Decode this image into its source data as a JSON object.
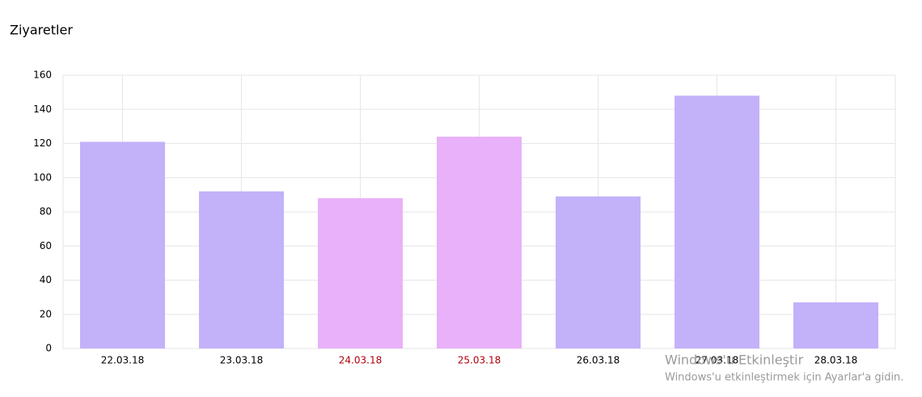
{
  "chart_data": {
    "type": "bar",
    "title": "Ziyaretler",
    "categories": [
      "22.03.18",
      "23.03.18",
      "24.03.18",
      "25.03.18",
      "26.03.18",
      "27.03.18",
      "28.03.18"
    ],
    "values": [
      121,
      92,
      88,
      124,
      89,
      148,
      27
    ],
    "colors": [
      "#c3b1f9",
      "#c3b1f9",
      "#e8b1f9",
      "#e8b1f9",
      "#c3b1f9",
      "#c3b1f9",
      "#c3b1f9"
    ],
    "label_colors": [
      "#000000",
      "#000000",
      "#b0000a",
      "#b0000a",
      "#000000",
      "#000000",
      "#000000"
    ],
    "ylim": [
      0,
      160
    ],
    "yticks": [
      0,
      20,
      40,
      60,
      80,
      100,
      120,
      140,
      160
    ],
    "grid": true
  },
  "watermark": {
    "title": "Windows'u Etkinleştir",
    "subtitle": "Windows'u etkinleştirmek için Ayarlar'a gidin."
  }
}
